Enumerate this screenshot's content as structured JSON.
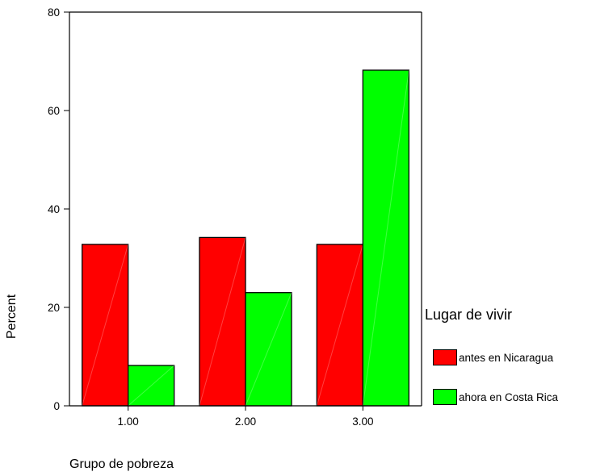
{
  "chart_data": {
    "type": "bar",
    "title": "",
    "xlabel": "Grupo de pobreza",
    "ylabel": "Percent",
    "categories": [
      "1.00",
      "2.00",
      "3.00"
    ],
    "series": [
      {
        "name": "antes en Nicaragua",
        "color": "#ff0000",
        "values": [
          32.8,
          34.2,
          32.8
        ]
      },
      {
        "name": "ahora en Costa Rica",
        "color": "#00ff00",
        "values": [
          8.2,
          23.0,
          68.2
        ]
      }
    ],
    "ylim": [
      0,
      80
    ],
    "yticks": [
      0,
      20,
      40,
      60,
      80
    ],
    "grid": false,
    "legend": {
      "title": "Lugar de vivir",
      "position": "right"
    }
  }
}
